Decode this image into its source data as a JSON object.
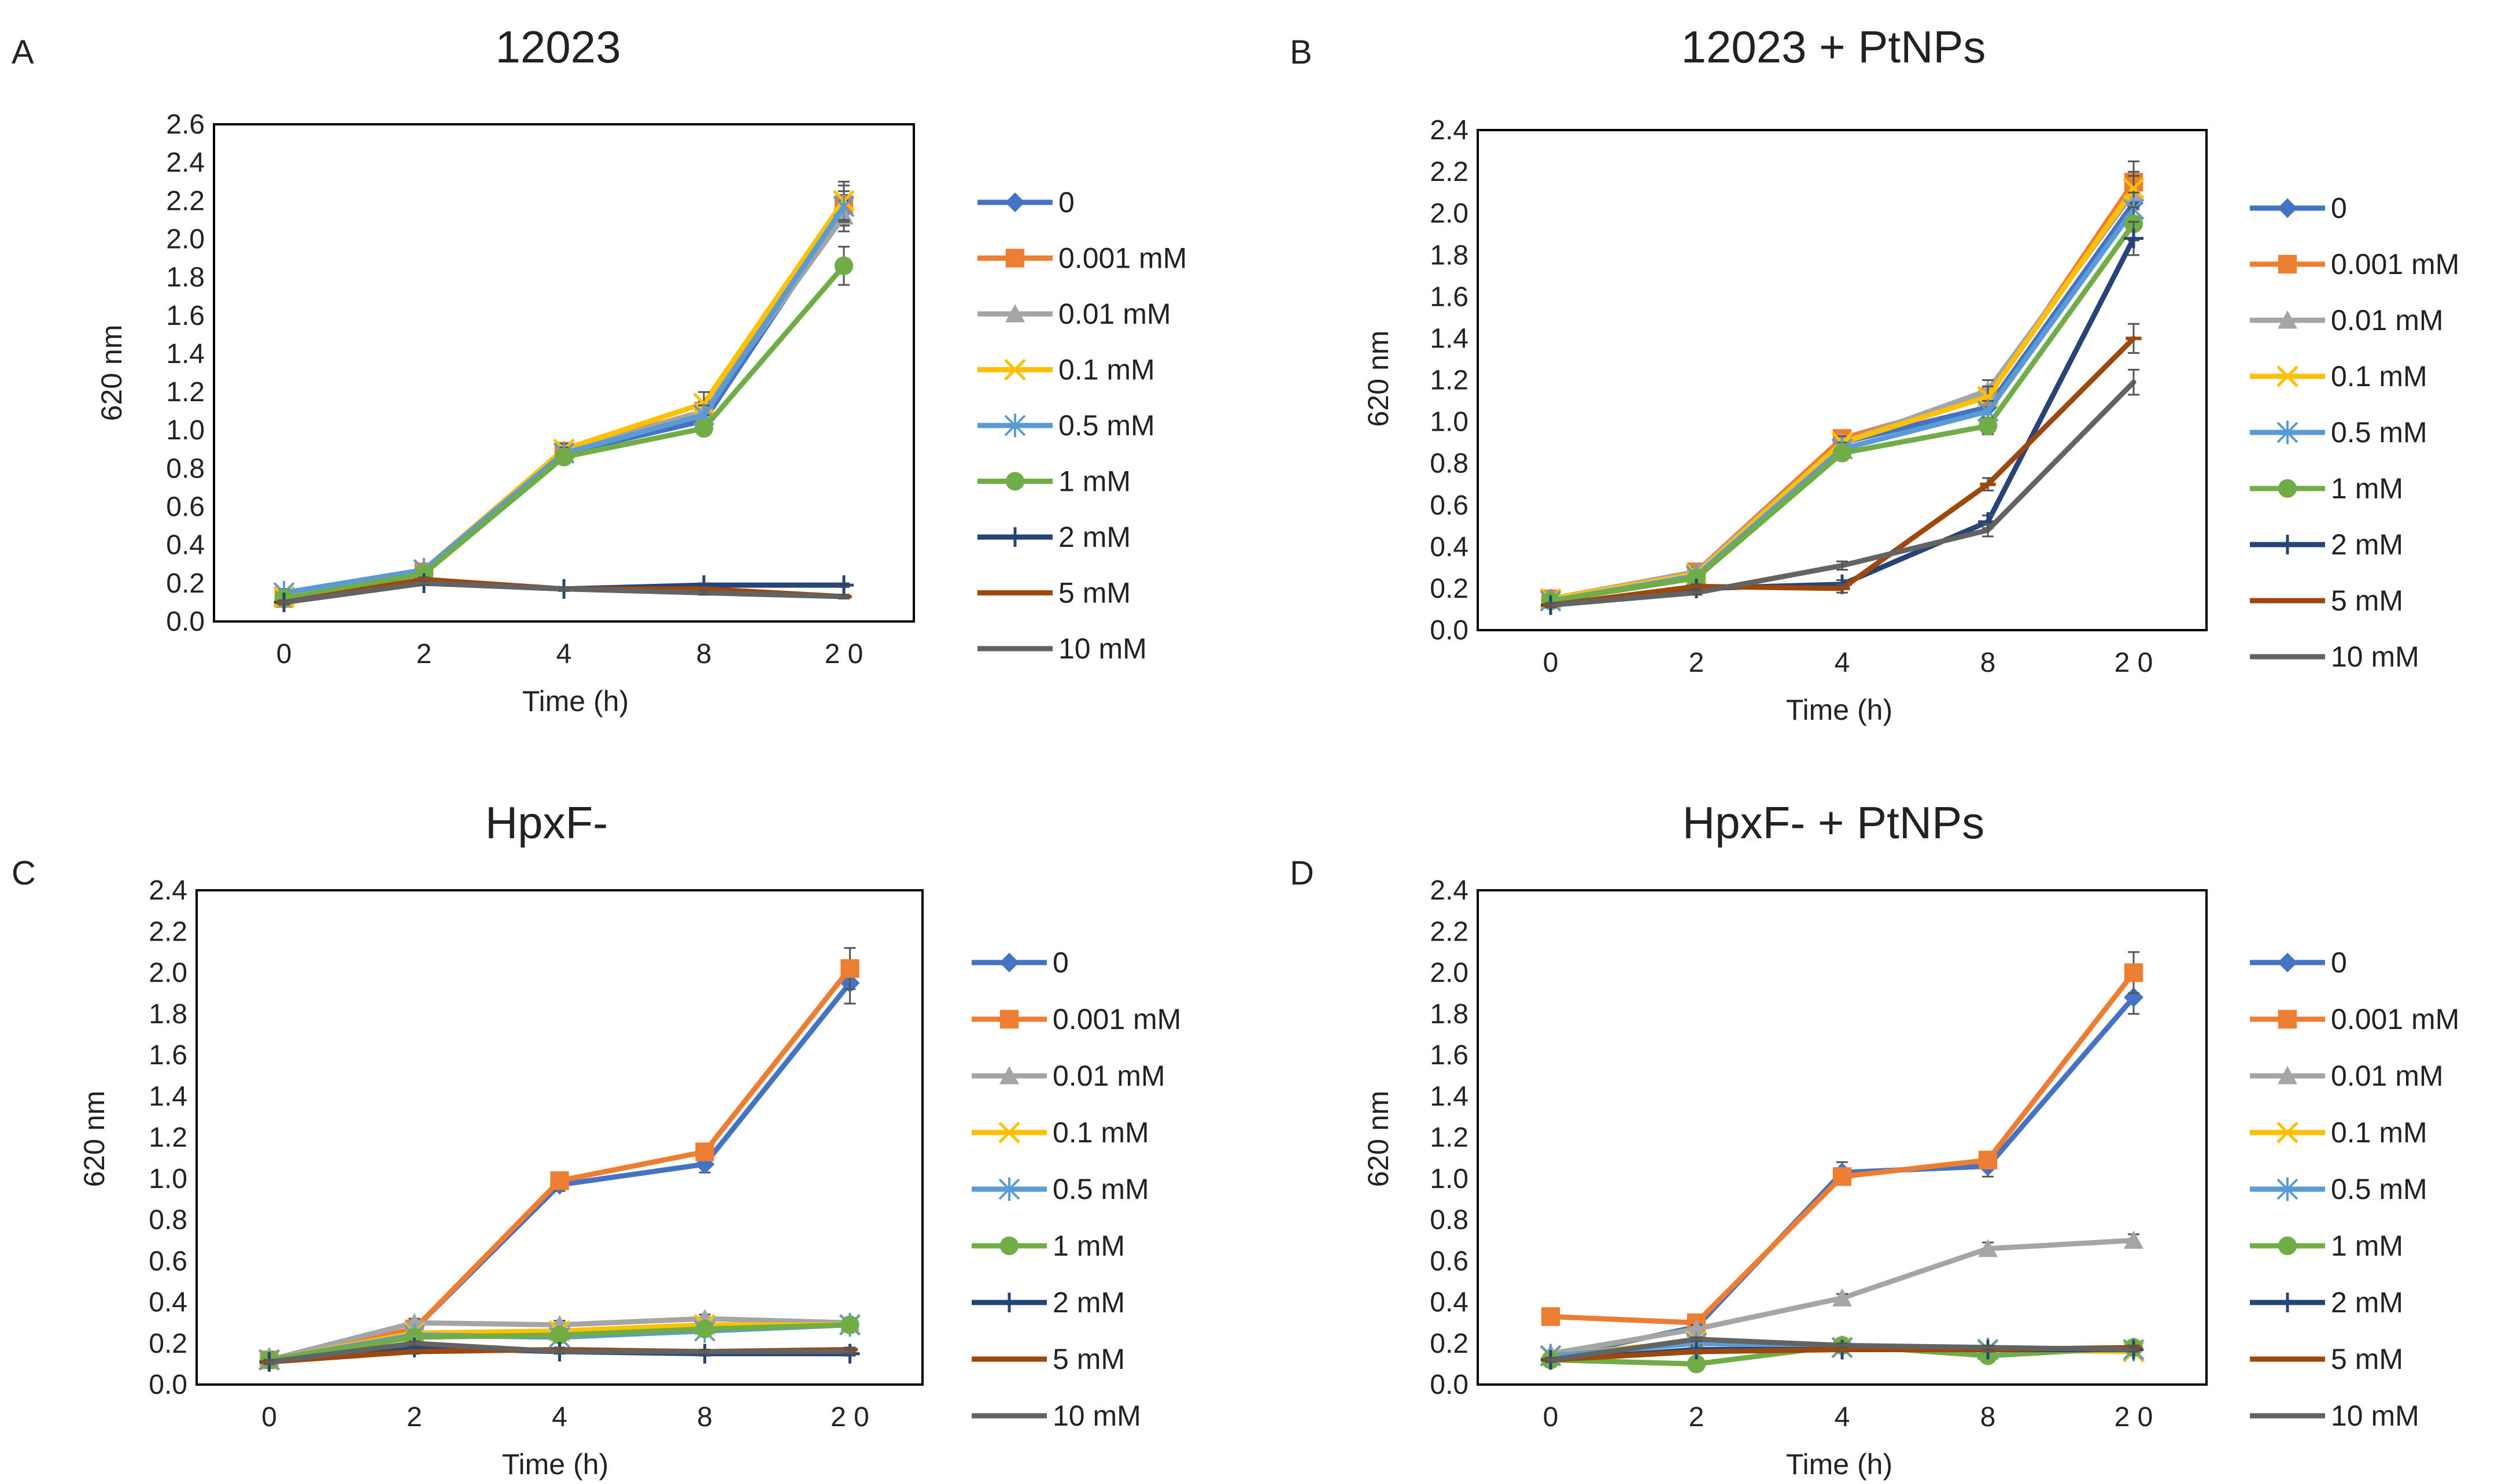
{
  "legend": [
    "0",
    "0.001 mM",
    "0.01 mM",
    "0.1 mM",
    "0.5 mM",
    "1 mM",
    "2 mM",
    "5 mM",
    "10 mM"
  ],
  "series_style": [
    {
      "color": "#4472C4",
      "marker": "diamond"
    },
    {
      "color": "#ED7D31",
      "marker": "square"
    },
    {
      "color": "#A5A5A5",
      "marker": "triangle"
    },
    {
      "color": "#FFC000",
      "marker": "x"
    },
    {
      "color": "#5B9BD5",
      "marker": "star"
    },
    {
      "color": "#70AD47",
      "marker": "circle"
    },
    {
      "color": "#264478",
      "marker": "plus"
    },
    {
      "color": "#9E480E",
      "marker": "dash"
    },
    {
      "color": "#636363",
      "marker": "none"
    }
  ],
  "chart_data": [
    {
      "panel": "A",
      "type": "line",
      "title": "12023",
      "xlabel": "Time (h)",
      "ylabel": "620 nm",
      "categories": [
        "0",
        "2",
        "4",
        "8",
        "2 0"
      ],
      "ylim": [
        0,
        2.6
      ],
      "yticks": [
        "0.0",
        "0.2",
        "0.4",
        "0.6",
        "0.8",
        "1.0",
        "1.2",
        "1.4",
        "1.6",
        "1.8",
        "2.0",
        "2.2",
        "2.4",
        "2.6"
      ],
      "series": [
        {
          "name": "0",
          "values": [
            0.12,
            0.25,
            0.88,
            1.05,
            2.15
          ],
          "err": [
            0.02,
            0.02,
            0.03,
            0.05,
            0.08
          ]
        },
        {
          "name": "0.001 mM",
          "values": [
            0.12,
            0.26,
            0.89,
            1.1,
            2.18
          ],
          "err": [
            0.02,
            0.02,
            0.03,
            0.05,
            0.1
          ]
        },
        {
          "name": "0.01 mM",
          "values": [
            0.12,
            0.26,
            0.88,
            1.1,
            2.12
          ],
          "err": [
            0.02,
            0.02,
            0.03,
            0.05,
            0.08
          ]
        },
        {
          "name": "0.1 mM",
          "values": [
            0.13,
            0.27,
            0.9,
            1.14,
            2.2
          ],
          "err": [
            0.02,
            0.02,
            0.03,
            0.06,
            0.1
          ]
        },
        {
          "name": "0.5 mM",
          "values": [
            0.15,
            0.27,
            0.88,
            1.08,
            2.17
          ],
          "err": [
            0.02,
            0.02,
            0.03,
            0.05,
            0.08
          ]
        },
        {
          "name": "1 mM",
          "values": [
            0.12,
            0.25,
            0.86,
            1.01,
            1.86
          ],
          "err": [
            0.02,
            0.02,
            0.03,
            0.03,
            0.1
          ]
        },
        {
          "name": "2 mM",
          "values": [
            0.1,
            0.2,
            0.17,
            0.19,
            0.19
          ],
          "err": [
            0.01,
            0.01,
            0.01,
            0.01,
            0.01
          ]
        },
        {
          "name": "5 mM",
          "values": [
            0.1,
            0.22,
            0.17,
            0.17,
            0.13
          ],
          "err": [
            0.01,
            0.01,
            0.01,
            0.01,
            0.01
          ]
        },
        {
          "name": "10 mM",
          "values": [
            0.1,
            0.2,
            0.17,
            0.15,
            0.13
          ],
          "err": [
            0.01,
            0.01,
            0.01,
            0.01,
            0.01
          ]
        }
      ]
    },
    {
      "panel": "B",
      "type": "line",
      "title": "12023 + PtNPs",
      "xlabel": "Time (h)",
      "ylabel": "620 nm",
      "categories": [
        "0",
        "2",
        "4",
        "8",
        "2 0"
      ],
      "ylim": [
        0,
        2.4
      ],
      "yticks": [
        "0.0",
        "0.2",
        "0.4",
        "0.6",
        "0.8",
        "1.0",
        "1.2",
        "1.4",
        "1.6",
        "1.8",
        "2.0",
        "2.2",
        "2.4"
      ],
      "series": [
        {
          "name": "0",
          "values": [
            0.15,
            0.27,
            0.9,
            1.07,
            2.05
          ],
          "err": [
            0.02,
            0.02,
            0.03,
            0.05,
            0.08
          ]
        },
        {
          "name": "0.001 mM",
          "values": [
            0.15,
            0.28,
            0.92,
            1.12,
            2.15
          ],
          "err": [
            0.02,
            0.02,
            0.03,
            0.05,
            0.1
          ]
        },
        {
          "name": "0.01 mM",
          "values": [
            0.15,
            0.28,
            0.9,
            1.15,
            2.1
          ],
          "err": [
            0.02,
            0.02,
            0.03,
            0.05,
            0.08
          ]
        },
        {
          "name": "0.1 mM",
          "values": [
            0.15,
            0.27,
            0.9,
            1.12,
            2.12
          ],
          "err": [
            0.02,
            0.02,
            0.03,
            0.05,
            0.08
          ]
        },
        {
          "name": "0.5 mM",
          "values": [
            0.14,
            0.26,
            0.87,
            1.05,
            2.02
          ],
          "err": [
            0.02,
            0.02,
            0.03,
            0.05,
            0.08
          ]
        },
        {
          "name": "1 mM",
          "values": [
            0.14,
            0.25,
            0.85,
            0.98,
            1.95
          ],
          "err": [
            0.02,
            0.02,
            0.03,
            0.04,
            0.08
          ]
        },
        {
          "name": "2 mM",
          "values": [
            0.12,
            0.2,
            0.22,
            0.52,
            1.88
          ],
          "err": [
            0.01,
            0.01,
            0.02,
            0.03,
            0.08
          ]
        },
        {
          "name": "5 mM",
          "values": [
            0.12,
            0.21,
            0.2,
            0.7,
            1.4
          ],
          "err": [
            0.01,
            0.01,
            0.02,
            0.03,
            0.07
          ]
        },
        {
          "name": "10 mM",
          "values": [
            0.12,
            0.18,
            0.31,
            0.48,
            1.19
          ],
          "err": [
            0.01,
            0.01,
            0.02,
            0.03,
            0.06
          ]
        }
      ]
    },
    {
      "panel": "C",
      "type": "line",
      "title": "HpxF-",
      "xlabel": "Time (h)",
      "ylabel": "620 nm",
      "categories": [
        "0",
        "2",
        "4",
        "8",
        "2 0"
      ],
      "ylim": [
        0,
        2.4
      ],
      "yticks": [
        "0.0",
        "0.2",
        "0.4",
        "0.6",
        "0.8",
        "1.0",
        "1.2",
        "1.4",
        "1.6",
        "1.8",
        "2.0",
        "2.2",
        "2.4"
      ],
      "series": [
        {
          "name": "0",
          "values": [
            0.12,
            0.27,
            0.97,
            1.07,
            1.95
          ],
          "err": [
            0.02,
            0.02,
            0.03,
            0.04,
            0.1
          ]
        },
        {
          "name": "0.001 mM",
          "values": [
            0.12,
            0.27,
            0.99,
            1.13,
            2.02
          ],
          "err": [
            0.02,
            0.02,
            0.03,
            0.03,
            0.1
          ]
        },
        {
          "name": "0.01 mM",
          "values": [
            0.12,
            0.3,
            0.29,
            0.32,
            0.3
          ],
          "err": [
            0.01,
            0.02,
            0.02,
            0.02,
            0.02
          ]
        },
        {
          "name": "0.1 mM",
          "values": [
            0.12,
            0.25,
            0.26,
            0.29,
            0.29
          ],
          "err": [
            0.01,
            0.02,
            0.02,
            0.02,
            0.02
          ]
        },
        {
          "name": "0.5 mM",
          "values": [
            0.12,
            0.24,
            0.23,
            0.26,
            0.29
          ],
          "err": [
            0.01,
            0.02,
            0.02,
            0.02,
            0.02
          ]
        },
        {
          "name": "1 mM",
          "values": [
            0.12,
            0.23,
            0.24,
            0.27,
            0.29
          ],
          "err": [
            0.01,
            0.02,
            0.02,
            0.02,
            0.02
          ]
        },
        {
          "name": "2 mM",
          "values": [
            0.11,
            0.18,
            0.16,
            0.15,
            0.15
          ],
          "err": [
            0.01,
            0.01,
            0.01,
            0.01,
            0.01
          ]
        },
        {
          "name": "5 mM",
          "values": [
            0.11,
            0.16,
            0.17,
            0.16,
            0.17
          ],
          "err": [
            0.01,
            0.01,
            0.01,
            0.01,
            0.01
          ]
        },
        {
          "name": "10 mM",
          "values": [
            0.11,
            0.2,
            0.16,
            0.16,
            0.16
          ],
          "err": [
            0.01,
            0.01,
            0.01,
            0.01,
            0.01
          ]
        }
      ]
    },
    {
      "panel": "D",
      "type": "line",
      "title": "HpxF- + PtNPs",
      "xlabel": "Time (h)",
      "ylabel": "620 nm",
      "categories": [
        "0",
        "2",
        "4",
        "8",
        "2 0"
      ],
      "ylim": [
        0,
        2.4
      ],
      "yticks": [
        "0.0",
        "0.2",
        "0.4",
        "0.6",
        "0.8",
        "1.0",
        "1.2",
        "1.4",
        "1.6",
        "1.8",
        "2.0",
        "2.2",
        "2.4"
      ],
      "series": [
        {
          "name": "0",
          "values": [
            0.13,
            0.28,
            1.03,
            1.06,
            1.88
          ],
          "err": [
            0.01,
            0.02,
            0.05,
            0.05,
            0.08
          ]
        },
        {
          "name": "0.001 mM",
          "values": [
            0.33,
            0.3,
            1.01,
            1.09,
            2.0
          ],
          "err": [
            0.02,
            0.02,
            0.03,
            0.04,
            0.1
          ]
        },
        {
          "name": "0.01 mM",
          "values": [
            0.15,
            0.27,
            0.42,
            0.66,
            0.7
          ],
          "err": [
            0.01,
            0.02,
            0.02,
            0.03,
            0.03
          ]
        },
        {
          "name": "0.1 mM",
          "values": [
            0.14,
            0.21,
            0.18,
            0.17,
            0.16
          ],
          "err": [
            0.01,
            0.01,
            0.01,
            0.01,
            0.01
          ]
        },
        {
          "name": "0.5 mM",
          "values": [
            0.14,
            0.2,
            0.18,
            0.17,
            0.17
          ],
          "err": [
            0.01,
            0.01,
            0.01,
            0.01,
            0.01
          ]
        },
        {
          "name": "1 mM",
          "values": [
            0.12,
            0.1,
            0.19,
            0.14,
            0.18
          ],
          "err": [
            0.01,
            0.01,
            0.01,
            0.01,
            0.01
          ]
        },
        {
          "name": "2 mM",
          "values": [
            0.12,
            0.17,
            0.17,
            0.17,
            0.17
          ],
          "err": [
            0.01,
            0.01,
            0.01,
            0.01,
            0.01
          ]
        },
        {
          "name": "5 mM",
          "values": [
            0.12,
            0.16,
            0.17,
            0.17,
            0.18
          ],
          "err": [
            0.01,
            0.01,
            0.01,
            0.01,
            0.01
          ]
        },
        {
          "name": "10 mM",
          "values": [
            0.12,
            0.22,
            0.19,
            0.18,
            0.17
          ],
          "err": [
            0.01,
            0.01,
            0.01,
            0.01,
            0.01
          ]
        }
      ]
    }
  ]
}
